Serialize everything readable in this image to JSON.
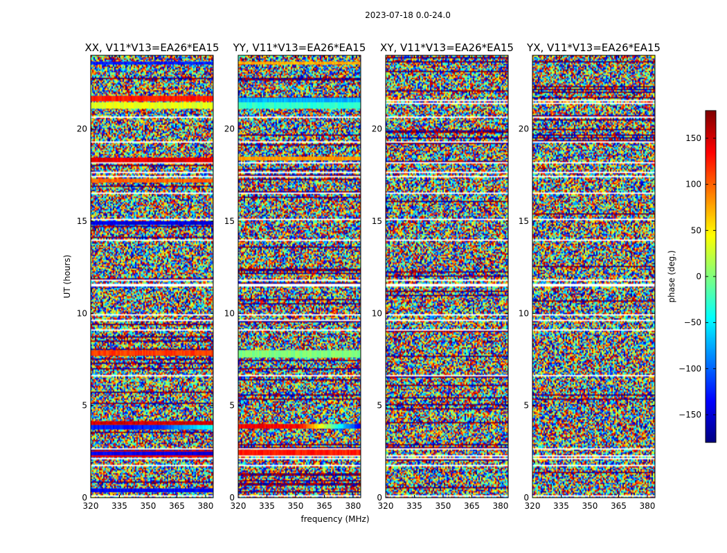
{
  "figure": {
    "suptitle": "2023-07-18 0.0-24.0"
  },
  "chart_data": [
    {
      "type": "heatmap",
      "title": "XX, V11*V13=EA26*EA15",
      "xlabel": "",
      "ylabel": "UT (hours)",
      "x_ticks": [
        320,
        335,
        350,
        365,
        380
      ],
      "y_ticks": [
        0,
        5,
        10,
        15,
        20
      ],
      "xlim": [
        320,
        384
      ],
      "ylim": [
        0,
        24
      ],
      "seed": 11,
      "bands": [
        {
          "y0": 0.3,
          "y1": 0.5,
          "hue": 0.12
        },
        {
          "y0": 2.2,
          "y1": 2.55,
          "hue": 0.88
        },
        {
          "y0": 2.3,
          "y1": 2.5,
          "hue": 0.12,
          "right_hue": 0.08
        },
        {
          "y0": 3.7,
          "y1": 3.95,
          "hue": 0.15,
          "right_hue": 0.4
        },
        {
          "y0": 3.95,
          "y1": 4.15,
          "hue": 0.92
        },
        {
          "y0": 7.7,
          "y1": 8.0,
          "hue": 0.82
        },
        {
          "y0": 14.8,
          "y1": 15.0,
          "hue": 0.1
        },
        {
          "y0": 18.2,
          "y1": 18.45,
          "hue": 0.9
        },
        {
          "y0": 17.1,
          "y1": 17.3,
          "hue": 0.78
        },
        {
          "y0": 21.1,
          "y1": 21.45,
          "hue": 0.6
        },
        {
          "y0": 21.5,
          "y1": 21.8,
          "hue": 0.85
        },
        {
          "y0": 23.5,
          "y1": 23.65,
          "hue": 0.15
        }
      ]
    },
    {
      "type": "heatmap",
      "title": "YY, V11*V13=EA26*EA15",
      "xlabel": "frequency (MHz)",
      "ylabel": "",
      "x_ticks": [
        320,
        335,
        350,
        365,
        380
      ],
      "y_ticks": [
        0,
        5,
        10,
        15,
        20
      ],
      "xlim": [
        320,
        384
      ],
      "ylim": [
        0,
        24
      ],
      "seed": 23,
      "bands": [
        {
          "y0": 2.3,
          "y1": 2.6,
          "hue": 0.85
        },
        {
          "y0": 3.75,
          "y1": 4.0,
          "hue": 0.88,
          "right_hue": 0.1
        },
        {
          "y0": 7.6,
          "y1": 8.0,
          "hue": 0.5
        },
        {
          "y0": 18.3,
          "y1": 18.5,
          "hue": 0.72
        },
        {
          "y0": 21.1,
          "y1": 21.45,
          "hue": 0.42
        },
        {
          "y0": 21.45,
          "y1": 21.7,
          "hue": 0.3
        },
        {
          "y0": 23.5,
          "y1": 23.65,
          "hue": 0.7
        }
      ]
    },
    {
      "type": "heatmap",
      "title": "XY, V11*V13=EA26*EA15",
      "xlabel": "",
      "ylabel": "",
      "x_ticks": [
        320,
        335,
        350,
        365,
        380
      ],
      "y_ticks": [
        0,
        5,
        10,
        15,
        20
      ],
      "xlim": [
        320,
        384
      ],
      "ylim": [
        0,
        24
      ],
      "seed": 37,
      "bands": []
    },
    {
      "type": "heatmap",
      "title": "YX, V11*V13=EA26*EA15",
      "xlabel": "",
      "ylabel": "",
      "x_ticks": [
        320,
        335,
        350,
        365,
        380
      ],
      "y_ticks": [
        0,
        5,
        10,
        15,
        20
      ],
      "xlim": [
        320,
        384
      ],
      "ylim": [
        0,
        24
      ],
      "seed": 41,
      "bands": []
    }
  ],
  "colorbar": {
    "label": "phase (deg.)",
    "ticks": [
      150,
      100,
      50,
      0,
      -50,
      -100,
      -150
    ],
    "tick_labels": [
      "150",
      "100",
      "50",
      "0",
      "−50",
      "−100",
      "−150"
    ],
    "range": [
      -180,
      180
    ],
    "colormap": "jet"
  }
}
